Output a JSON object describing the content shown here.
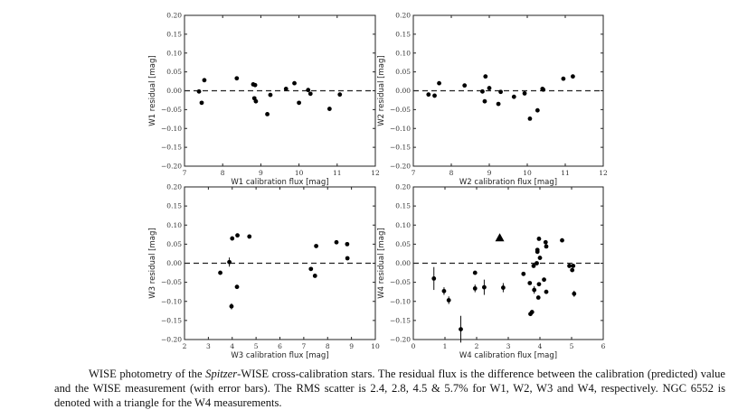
{
  "chart_data": [
    {
      "type": "scatter",
      "xlabel": "W1 calibration flux [mag]",
      "ylabel": "W1 residual [mag]",
      "xlim": [
        7,
        12
      ],
      "ylim": [
        -0.2,
        0.2
      ],
      "xticks": [
        "7",
        "8",
        "9",
        "10",
        "11",
        "12"
      ],
      "yticks": [
        "0.20",
        "0.15",
        "0.10",
        "0.05",
        "0.00",
        "−0.05",
        "−0.10",
        "−0.15",
        "−0.20"
      ],
      "reference_line": 0,
      "points": [
        [
          7.38,
          -0.002
        ],
        [
          7.45,
          -0.032
        ],
        [
          7.52,
          0.028
        ],
        [
          8.37,
          0.033
        ],
        [
          8.8,
          0.017
        ],
        [
          8.85,
          0.015
        ],
        [
          8.83,
          -0.02
        ],
        [
          8.87,
          -0.028
        ],
        [
          9.17,
          -0.062
        ],
        [
          9.25,
          -0.011
        ],
        [
          9.66,
          0.005
        ],
        [
          9.88,
          0.02
        ],
        [
          10.0,
          -0.032
        ],
        [
          10.24,
          0.002
        ],
        [
          10.3,
          -0.008
        ],
        [
          10.8,
          -0.048
        ],
        [
          11.07,
          -0.01
        ]
      ]
    },
    {
      "type": "scatter",
      "xlabel": "W2 calibration flux [mag]",
      "ylabel": "W2 residual [mag]",
      "xlim": [
        7,
        12
      ],
      "ylim": [
        -0.2,
        0.2
      ],
      "xticks": [
        "7",
        "8",
        "9",
        "10",
        "11",
        "12"
      ],
      "yticks": [
        "0.20",
        "0.15",
        "0.10",
        "0.05",
        "0.00",
        "−0.05",
        "−0.10",
        "−0.15",
        "−0.20"
      ],
      "reference_line": 0,
      "points": [
        [
          7.4,
          -0.01
        ],
        [
          7.56,
          -0.013
        ],
        [
          7.68,
          0.02
        ],
        [
          8.35,
          0.014
        ],
        [
          8.82,
          -0.002
        ],
        [
          8.88,
          -0.028
        ],
        [
          8.9,
          0.038
        ],
        [
          9.0,
          0.007
        ],
        [
          9.24,
          -0.035
        ],
        [
          9.3,
          -0.003
        ],
        [
          9.65,
          -0.016
        ],
        [
          9.93,
          -0.007
        ],
        [
          10.07,
          -0.074
        ],
        [
          10.27,
          -0.052
        ],
        [
          10.4,
          0.005
        ],
        [
          10.42,
          0.003
        ],
        [
          10.95,
          0.032
        ],
        [
          11.2,
          0.038
        ]
      ]
    },
    {
      "type": "scatter",
      "xlabel": "W3 calibration flux [mag]",
      "ylabel": "W3 residual [mag]",
      "xlim": [
        2,
        10
      ],
      "ylim": [
        -0.2,
        0.2
      ],
      "xticks": [
        "2",
        "3",
        "4",
        "5",
        "6",
        "7",
        "8",
        "9",
        "10"
      ],
      "yticks": [
        "0.20",
        "0.15",
        "0.10",
        "0.05",
        "0.00",
        "−0.05",
        "−0.10",
        "−0.15",
        "−0.20"
      ],
      "reference_line": 0,
      "points": [
        [
          3.5,
          -0.025,
          0
        ],
        [
          3.88,
          0.003,
          0.012
        ],
        [
          4.0,
          0.065,
          0.005
        ],
        [
          3.97,
          -0.113,
          0.008
        ],
        [
          4.22,
          0.073,
          0
        ],
        [
          4.2,
          -0.062,
          0
        ],
        [
          4.72,
          0.07,
          0
        ],
        [
          7.3,
          -0.015,
          0
        ],
        [
          7.47,
          -0.033,
          0
        ],
        [
          7.52,
          0.045,
          0
        ],
        [
          8.37,
          0.055,
          0
        ],
        [
          8.82,
          0.05,
          0
        ],
        [
          8.83,
          0.013,
          0
        ]
      ]
    },
    {
      "type": "scatter",
      "xlabel": "W4 calibration flux [mag]",
      "ylabel": "W4 residual [mag]",
      "xlim": [
        0,
        6
      ],
      "ylim": [
        -0.2,
        0.2
      ],
      "xticks": [
        "0",
        "1",
        "2",
        "3",
        "4",
        "5",
        "6"
      ],
      "yticks": [
        "0.20",
        "0.15",
        "0.10",
        "0.05",
        "0.00",
        "−0.05",
        "−0.10",
        "−0.15",
        "−0.20"
      ],
      "reference_line": 0,
      "points": [
        [
          0.65,
          -0.04,
          0.03
        ],
        [
          0.97,
          -0.073,
          0.01
        ],
        [
          1.12,
          -0.097,
          0.01
        ],
        [
          1.5,
          -0.173,
          0.035
        ],
        [
          1.95,
          -0.025,
          0
        ],
        [
          1.95,
          -0.066,
          0.01
        ],
        [
          2.24,
          -0.063,
          0.02
        ],
        [
          2.84,
          -0.064,
          0.012
        ],
        [
          3.48,
          -0.028,
          0
        ],
        [
          3.68,
          -0.052,
          0
        ],
        [
          3.7,
          -0.133,
          0
        ],
        [
          3.75,
          -0.128,
          0
        ],
        [
          3.8,
          -0.007,
          0
        ],
        [
          3.82,
          -0.07,
          0.01
        ],
        [
          3.9,
          0.0,
          0
        ],
        [
          3.92,
          0.035,
          0
        ],
        [
          3.92,
          0.03,
          0
        ],
        [
          3.95,
          -0.09,
          0
        ],
        [
          3.97,
          0.064,
          0
        ],
        [
          3.97,
          -0.055,
          0
        ],
        [
          4.0,
          0.014,
          0
        ],
        [
          4.13,
          -0.043,
          0
        ],
        [
          4.18,
          0.055,
          0
        ],
        [
          4.2,
          0.044,
          0
        ],
        [
          4.2,
          -0.075,
          0
        ],
        [
          4.7,
          0.06,
          0
        ],
        [
          4.93,
          -0.007,
          0
        ],
        [
          5.02,
          -0.018,
          0
        ],
        [
          5.05,
          -0.007,
          0
        ],
        [
          5.08,
          -0.08,
          0.008
        ]
      ],
      "triangle_points": [
        [
          2.73,
          0.067
        ]
      ]
    }
  ],
  "caption": {
    "part1": "WISE photometry of the ",
    "italic": "Spitzer",
    "part2": "-WISE cross-calibration stars.  The residual flux is the difference between the calibration (predicted) value and the WISE measurement (with error bars). The RMS scatter is 2.4, 2.8, 4.5 & 5.7% for W1, W2, W3 and W4, respectively. NGC 6552 is denoted with a triangle for the W4 measurements."
  }
}
